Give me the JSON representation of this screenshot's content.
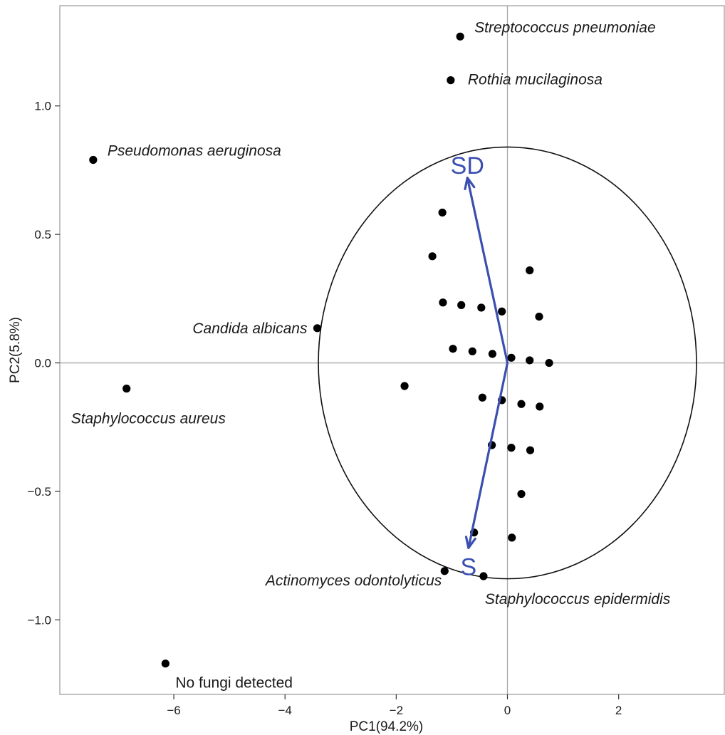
{
  "chart_data": {
    "type": "scatter",
    "xlabel": "PC1(94.2%)",
    "ylabel": "PC2(5.8%)",
    "xlim": [
      -8.05,
      3.9
    ],
    "ylim": [
      -1.29,
      1.39
    ],
    "xticks": [
      -6,
      -4,
      -2,
      0,
      2
    ],
    "yticks": [
      -1.0,
      -0.5,
      0.0,
      0.5,
      1.0
    ],
    "xtick_labels": [
      "−6",
      "−4",
      "−2",
      "0",
      "2"
    ],
    "ytick_labels": [
      "−1.0",
      "−0.5",
      "0.0",
      "0.5",
      "1.0"
    ],
    "grid": false,
    "reference_lines": {
      "x": 0,
      "y": 0
    },
    "circle": {
      "cx": 0,
      "cy": 0,
      "rx": 3.4,
      "ry": 0.84
    },
    "points": [
      {
        "x": -0.85,
        "y": 1.27,
        "label": "Streptococcus pneumoniae",
        "italic": true
      },
      {
        "x": -1.02,
        "y": 1.1,
        "label": "Rothia mucilaginosa",
        "italic": true
      },
      {
        "x": -7.45,
        "y": 0.79,
        "label": "Pseudomonas aeruginosa",
        "italic": true
      },
      {
        "x": -3.42,
        "y": 0.135,
        "label": "Candida albicans",
        "italic": true
      },
      {
        "x": -6.85,
        "y": -0.1,
        "label": "Staphylococcus aureus",
        "italic": true
      },
      {
        "x": -1.13,
        "y": -0.81,
        "label": "Actinomyces odontolyticus",
        "italic": true
      },
      {
        "x": -0.43,
        "y": -0.83,
        "label": "Staphylococcus epidermidis",
        "italic": true
      },
      {
        "x": -6.15,
        "y": -1.17,
        "label": "No fungi detected",
        "italic": false
      },
      {
        "x": -1.17,
        "y": 0.585
      },
      {
        "x": -1.35,
        "y": 0.415
      },
      {
        "x": 0.4,
        "y": 0.36
      },
      {
        "x": -1.16,
        "y": 0.235
      },
      {
        "x": -0.83,
        "y": 0.225
      },
      {
        "x": -0.47,
        "y": 0.215
      },
      {
        "x": -0.1,
        "y": 0.2
      },
      {
        "x": 0.57,
        "y": 0.18
      },
      {
        "x": -0.98,
        "y": 0.055
      },
      {
        "x": -0.63,
        "y": 0.045
      },
      {
        "x": -0.27,
        "y": 0.035
      },
      {
        "x": 0.07,
        "y": 0.02
      },
      {
        "x": 0.4,
        "y": 0.01
      },
      {
        "x": 0.75,
        "y": 0.0
      },
      {
        "x": -1.85,
        "y": -0.09
      },
      {
        "x": -0.45,
        "y": -0.135
      },
      {
        "x": -0.1,
        "y": -0.145
      },
      {
        "x": 0.25,
        "y": -0.16
      },
      {
        "x": 0.58,
        "y": -0.17
      },
      {
        "x": -0.28,
        "y": -0.32
      },
      {
        "x": 0.07,
        "y": -0.33
      },
      {
        "x": 0.41,
        "y": -0.34
      },
      {
        "x": 0.25,
        "y": -0.51
      },
      {
        "x": -0.6,
        "y": -0.66
      },
      {
        "x": 0.08,
        "y": -0.68
      }
    ],
    "vectors": [
      {
        "label": "SD",
        "x": -0.72,
        "y": 0.72,
        "color": "#3b4fb0"
      },
      {
        "label": "S",
        "x": -0.7,
        "y": -0.72,
        "color": "#3b4fb0"
      }
    ]
  }
}
